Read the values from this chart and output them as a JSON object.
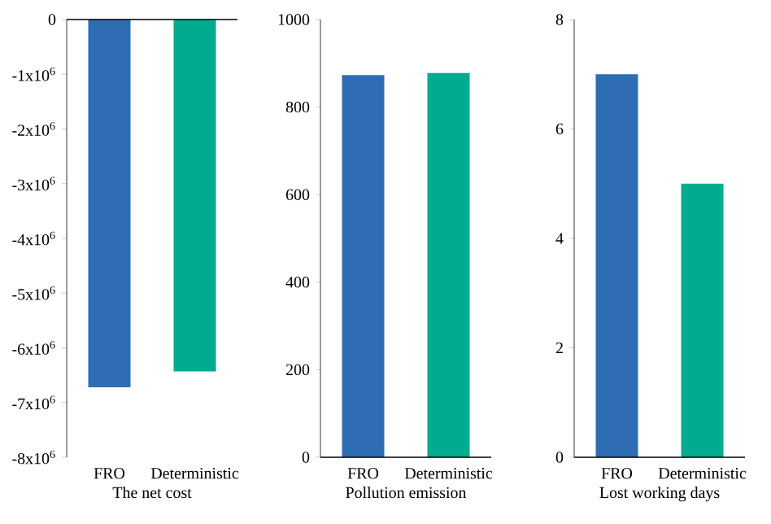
{
  "chart_data": [
    {
      "type": "bar",
      "xlabel": "The net cost",
      "categories": [
        "FRO",
        "Deterministic"
      ],
      "values": [
        -6720000,
        -6430000
      ],
      "colors": [
        "#2e6db4",
        "#00ab8e"
      ],
      "ylim": [
        -8000000,
        0
      ],
      "yticks": [
        {
          "value": -8000000,
          "label": "-8x10$^{6}$"
        },
        {
          "value": -7000000,
          "label": "-7x10$^{6}$"
        },
        {
          "value": -6000000,
          "label": "-6x10$^{6}$"
        },
        {
          "value": -5000000,
          "label": "-5x10$^{6}$"
        },
        {
          "value": -4000000,
          "label": "-4x10$^{6}$"
        },
        {
          "value": -3000000,
          "label": "-3x10$^{6}$"
        },
        {
          "value": -2000000,
          "label": "-2x10$^{6}$"
        },
        {
          "value": -1000000,
          "label": "-1x10$^{6}$"
        },
        {
          "value": 0,
          "label": "0"
        }
      ]
    },
    {
      "type": "bar",
      "xlabel": "Pollution emission",
      "categories": [
        "FRO",
        "Deterministic"
      ],
      "values": [
        873,
        878
      ],
      "colors": [
        "#2e6db4",
        "#00ab8e"
      ],
      "ylim": [
        0,
        1000
      ],
      "yticks": [
        0,
        200,
        400,
        600,
        800,
        1000
      ]
    },
    {
      "type": "bar",
      "xlabel": "Lost working days",
      "categories": [
        "FRO",
        "Deterministic"
      ],
      "values": [
        7.0,
        5.0
      ],
      "colors": [
        "#2e6db4",
        "#00ab8e"
      ],
      "ylim": [
        0,
        8
      ],
      "yticks": [
        0,
        2,
        4,
        6,
        8
      ]
    }
  ]
}
